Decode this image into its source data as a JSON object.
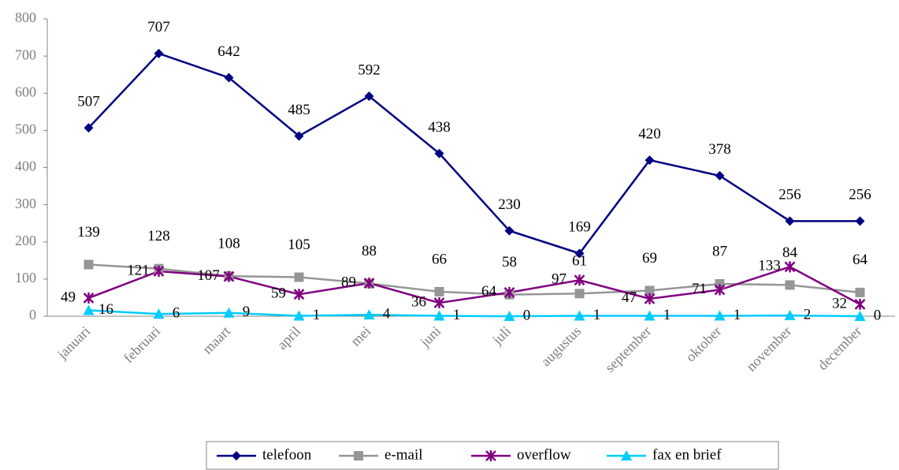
{
  "chart_data": {
    "type": "line",
    "categories": [
      "januari",
      "februari",
      "maart",
      "april",
      "mei",
      "juni",
      "juli",
      "augustus",
      "september",
      "oktober",
      "november",
      "december"
    ],
    "series": [
      {
        "name": "telefoon",
        "color": "#000080",
        "marker": "diamond",
        "values": [
          507,
          707,
          642,
          485,
          592,
          438,
          230,
          169,
          420,
          378,
          256,
          256
        ]
      },
      {
        "name": "e-mail",
        "color": "#969696",
        "marker": "square",
        "values": [
          139,
          128,
          108,
          105,
          88,
          66,
          58,
          61,
          69,
          87,
          84,
          64
        ]
      },
      {
        "name": "overflow",
        "color": "#800080",
        "marker": "star",
        "values": [
          49,
          121,
          107,
          59,
          89,
          36,
          64,
          97,
          47,
          71,
          133,
          32
        ]
      },
      {
        "name": "fax en brief",
        "color": "#00ccff",
        "marker": "triangle",
        "values": [
          16,
          6,
          9,
          1,
          4,
          1,
          0,
          1,
          1,
          1,
          2,
          0
        ]
      }
    ],
    "ylim": [
      0,
      800
    ],
    "yticks": [
      0,
      100,
      200,
      300,
      400,
      500,
      600,
      700,
      800
    ],
    "legend": "bottom"
  }
}
